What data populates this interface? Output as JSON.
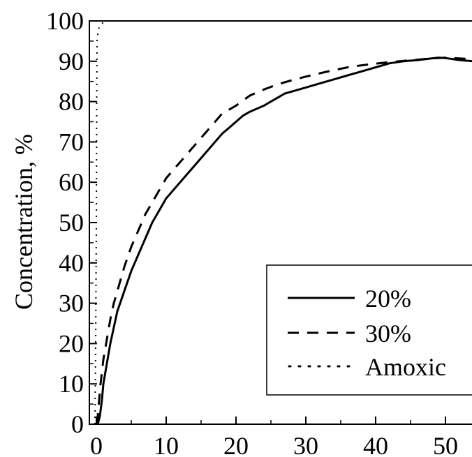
{
  "chart_data": {
    "type": "line",
    "title": "",
    "xlabel": "",
    "ylabel": "Concentration, %",
    "xlim": [
      -1,
      54
    ],
    "ylim": [
      0,
      100
    ],
    "x_ticks": [
      0,
      10,
      20,
      30,
      40,
      50
    ],
    "y_ticks": [
      0,
      10,
      20,
      30,
      40,
      50,
      60,
      70,
      80,
      90,
      100
    ],
    "grid": false,
    "legend_position": "lower-right",
    "series": [
      {
        "name": "20%",
        "style": "solid",
        "color": "#000000",
        "points": [
          [
            0.2,
            0
          ],
          [
            0.5,
            2
          ],
          [
            0.8,
            6
          ],
          [
            1,
            10
          ],
          [
            1.5,
            15
          ],
          [
            2,
            20
          ],
          [
            2.5,
            24
          ],
          [
            3,
            28
          ],
          [
            4,
            33
          ],
          [
            5,
            38
          ],
          [
            6,
            42
          ],
          [
            7,
            46
          ],
          [
            8,
            50
          ],
          [
            9,
            53
          ],
          [
            10,
            56
          ],
          [
            12,
            60
          ],
          [
            14,
            64
          ],
          [
            16,
            68
          ],
          [
            18,
            72
          ],
          [
            19,
            73.5
          ],
          [
            20,
            75
          ],
          [
            21,
            76.5
          ],
          [
            22,
            77.5
          ],
          [
            24,
            79
          ],
          [
            26,
            81
          ],
          [
            27,
            82
          ],
          [
            28,
            82.5
          ],
          [
            30,
            83.5
          ],
          [
            32,
            84.5
          ],
          [
            34,
            85.5
          ],
          [
            36,
            86.5
          ],
          [
            38,
            87.5
          ],
          [
            40,
            88.5
          ],
          [
            42,
            89.5
          ],
          [
            44,
            90
          ],
          [
            46,
            90.3
          ],
          [
            48,
            90.7
          ],
          [
            49,
            90.9
          ],
          [
            50,
            90.8
          ],
          [
            52,
            90.3
          ],
          [
            54,
            90
          ]
        ]
      },
      {
        "name": "30%",
        "style": "dashed",
        "color": "#000000",
        "points": [
          [
            0.1,
            0
          ],
          [
            0.3,
            4
          ],
          [
            0.6,
            10
          ],
          [
            1,
            16
          ],
          [
            1.5,
            21
          ],
          [
            2,
            26
          ],
          [
            2.5,
            30
          ],
          [
            3,
            33
          ],
          [
            4,
            39
          ],
          [
            5,
            44
          ],
          [
            6,
            48
          ],
          [
            7,
            52
          ],
          [
            8,
            55
          ],
          [
            9,
            58
          ],
          [
            10,
            61
          ],
          [
            12,
            65
          ],
          [
            14,
            69
          ],
          [
            16,
            73
          ],
          [
            18,
            77
          ],
          [
            20,
            79
          ],
          [
            22,
            81.5
          ],
          [
            24,
            83
          ],
          [
            26,
            84.3
          ],
          [
            28,
            85.3
          ],
          [
            30,
            86.2
          ],
          [
            32,
            87
          ],
          [
            34,
            87.8
          ],
          [
            36,
            88.5
          ],
          [
            38,
            89
          ],
          [
            40,
            89.4
          ],
          [
            42,
            89.8
          ],
          [
            44,
            90.1
          ],
          [
            46,
            90.4
          ],
          [
            48,
            90.7
          ],
          [
            50,
            90.9
          ],
          [
            52,
            90.7
          ],
          [
            54,
            90.5
          ]
        ]
      },
      {
        "name": "Amoxic",
        "style": "dotted",
        "color": "#000000",
        "points": [
          [
            -0.2,
            0
          ],
          [
            -0.1,
            20
          ],
          [
            0,
            50
          ],
          [
            0.05,
            80
          ],
          [
            0.1,
            95
          ],
          [
            0.3,
            98
          ],
          [
            0.6,
            99
          ],
          [
            0.9,
            99.5
          ],
          [
            1.1,
            98.8
          ]
        ]
      }
    ]
  }
}
